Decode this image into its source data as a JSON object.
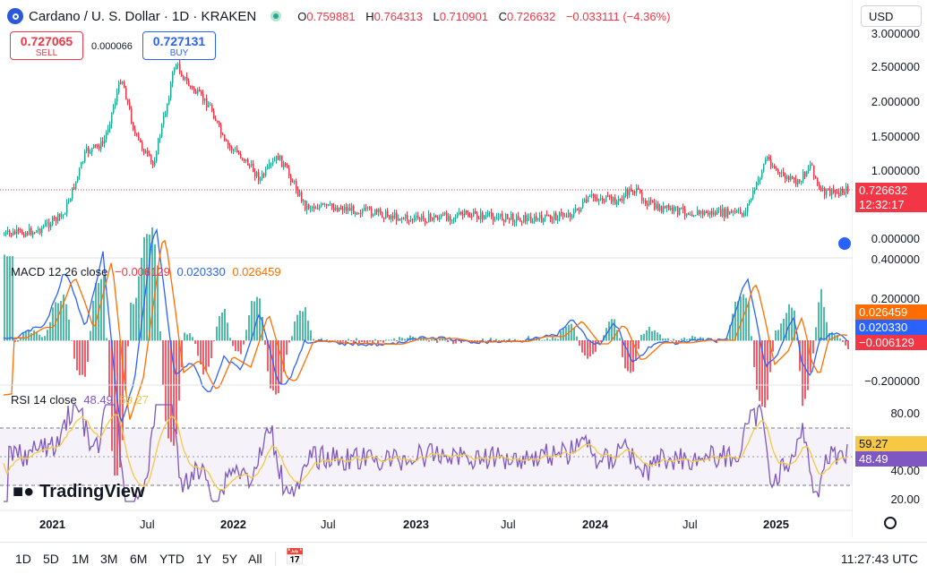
{
  "header": {
    "symbol": "Cardano / U. S. Dollar · 1D · KRAKEN",
    "open_label": "O",
    "open": "0.759881",
    "high_label": "H",
    "high": "0.764313",
    "low_label": "L",
    "low": "0.710901",
    "close_label": "C",
    "close": "0.726632",
    "change": "−0.033111 (−4.36%)"
  },
  "currency": "USD",
  "trade": {
    "sell_price": "0.727065",
    "sell_label": "SELL",
    "spread": "0.000066",
    "buy_price": "0.727131",
    "buy_label": "BUY"
  },
  "price_axis": [
    "3.000000",
    "2.500000",
    "2.000000",
    "1.500000",
    "1.000000",
    "0.000000"
  ],
  "price_tag": {
    "value": "0.726632",
    "countdown": "12:32:17"
  },
  "macd": {
    "title": "MACD 12 26 close",
    "v1": "−0.006129",
    "v2": "0.020330",
    "v3": "0.026459",
    "axis": [
      "0.400000",
      "0.200000",
      "−0.200000"
    ],
    "tag_orange": "0.026459",
    "tag_blue": "0.020330",
    "tag_red": "−0.006129"
  },
  "rsi": {
    "title": "RSI 14 close",
    "v1": "48.49",
    "v2": "59.27",
    "axis": [
      "80.00",
      "40.00",
      "20.00"
    ],
    "tag_yellow": "59.27",
    "tag_purple": "48.49"
  },
  "watermark": "TradingView",
  "dates": [
    "2021",
    "Jul",
    "2022",
    "Jul",
    "2023",
    "Jul",
    "2024",
    "Jul",
    "2025"
  ],
  "ranges": [
    "1D",
    "5D",
    "1M",
    "3M",
    "6M",
    "YTD",
    "1Y",
    "5Y",
    "All"
  ],
  "clock": "11:27:43 UTC",
  "colors": {
    "up": "#22ab94",
    "down": "#f23645",
    "macd": "#2962ff",
    "signal": "#ff6d00",
    "rsi": "#7e57c2",
    "rsi_ma": "#f7c844"
  }
}
